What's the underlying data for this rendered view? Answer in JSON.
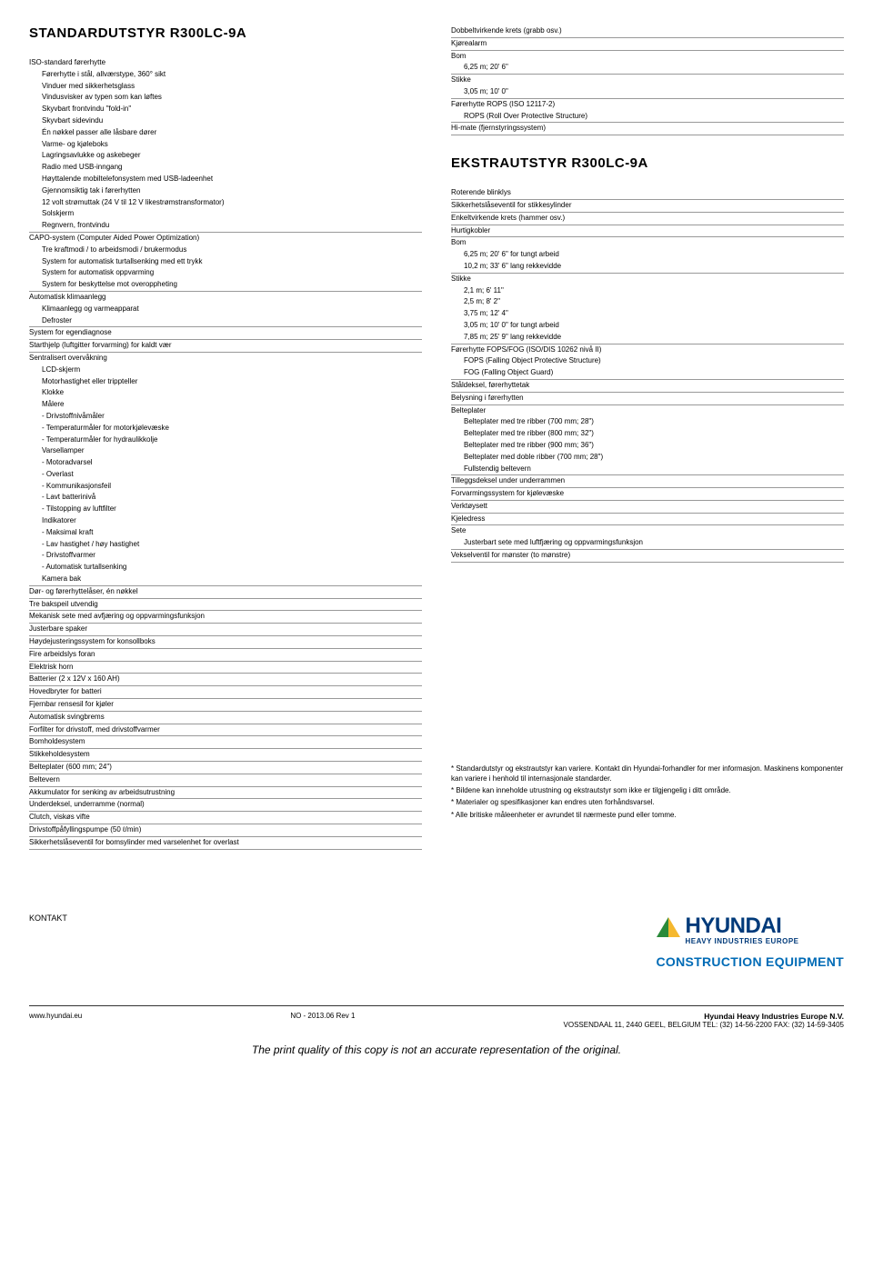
{
  "left": {
    "title": "STANDARDUTSTYR R300LC-9A",
    "groups": [
      {
        "head": "ISO-standard førerhytte",
        "subs": [
          "Førerhytte i stål, allværstype, 360° sikt",
          "Vinduer med sikkerhetsglass",
          "Vindusvisker av typen som kan løftes",
          "Skyvbart frontvindu \"fold-in\"",
          "Skyvbart sidevindu",
          "Én nøkkel passer alle låsbare dører",
          "Varme- og kjøleboks",
          "Lagringsavlukke og askebeger",
          "Radio med USB-inngang",
          "Høyttalende mobiltelefonsystem med USB-ladeenhet",
          "Gjennomsiktig tak i førerhytten",
          "12 volt strømuttak (24 V til 12 V likestrømstransformator)",
          "Solskjerm",
          "Regnvern, frontvindu"
        ]
      },
      {
        "head": "CAPO-system (Computer Aided Power Optimization)",
        "subs": [
          "Tre kraftmodi / to arbeidsmodi / brukermodus",
          "System for automatisk turtallsenking med ett trykk",
          "System for automatisk oppvarming",
          "System for beskyttelse mot overoppheting"
        ]
      },
      {
        "head": "Automatisk klimaanlegg",
        "subs": [
          "Klimaanlegg og varmeapparat",
          "Defroster"
        ]
      },
      {
        "head": "System for egendiagnose",
        "subs": []
      },
      {
        "head": "Starthjelp (luftgitter forvarming) for kaldt vær",
        "subs": []
      },
      {
        "head": "Sentralisert overvåkning",
        "subs": [
          "LCD-skjerm",
          "Motorhastighet eller trippteller",
          "Klokke",
          "Målere",
          "- Drivstoffnivåmåler",
          "- Temperaturmåler for motorkjølevæske",
          "- Temperaturmåler for hydraulikkolje",
          "Varsellamper",
          "- Motoradvarsel",
          "- Overlast",
          "- Kommunikasjonsfeil",
          "- Lavt batterinivå",
          "- Tilstopping av luftfilter",
          "Indikatorer",
          "- Maksimal kraft",
          "- Lav hastighet / høy hastighet",
          "- Drivstoffvarmer",
          "- Automatisk turtallsenking",
          "Kamera bak"
        ]
      },
      {
        "head": "Dør- og førerhyttelåser, én nøkkel",
        "subs": []
      },
      {
        "head": "Tre bakspeil utvendig",
        "subs": []
      },
      {
        "head": "Mekanisk sete med avfjæring og oppvarmingsfunksjon",
        "subs": []
      },
      {
        "head": "Justerbare spaker",
        "subs": []
      },
      {
        "head": "Høydejusteringssystem for konsollboks",
        "subs": []
      },
      {
        "head": "Fire arbeidslys foran",
        "subs": []
      },
      {
        "head": "Elektrisk horn",
        "subs": []
      },
      {
        "head": "Batterier (2 x 12V x 160 AH)",
        "subs": []
      },
      {
        "head": "Hovedbryter for batteri",
        "subs": []
      },
      {
        "head": "Fjernbar rensesil for kjøler",
        "subs": []
      },
      {
        "head": "Automatisk svingbrems",
        "subs": []
      },
      {
        "head": "Forfilter for drivstoff, med drivstoffvarmer",
        "subs": []
      },
      {
        "head": "Bomholdesystem",
        "subs": []
      },
      {
        "head": "Stikkeholdesystem",
        "subs": []
      },
      {
        "head": "Belteplater (600 mm; 24\")",
        "subs": []
      },
      {
        "head": "Beltevern",
        "subs": []
      },
      {
        "head": "Akkumulator for senking av arbeidsutrustning",
        "subs": []
      },
      {
        "head": "Underdeksel, underramme (normal)",
        "subs": []
      },
      {
        "head": "Clutch, viskøs vifte",
        "subs": []
      },
      {
        "head": "Drivstoffpåfyllingspumpe (50 ℓ/min)",
        "subs": []
      },
      {
        "head": "Sikkerhetslåseventil for bomsylinder med varselenhet for overlast",
        "subs": []
      }
    ]
  },
  "right_top": {
    "groups": [
      {
        "head": "Dobbeltvirkende krets (grabb osv.)",
        "subs": []
      },
      {
        "head": "Kjørealarm",
        "subs": []
      },
      {
        "head": "Bom",
        "subs": [
          "6,25 m; 20' 6\""
        ]
      },
      {
        "head": "Stikke",
        "subs": [
          "3,05 m; 10' 0\""
        ]
      },
      {
        "head": "Førerhytte ROPS (ISO 12117-2)",
        "subs": [
          "ROPS (Roll Over Protective Structure)"
        ]
      },
      {
        "head": "Hi-mate (fjernstyringssystem)",
        "subs": []
      }
    ]
  },
  "right": {
    "title": "EKSTRAUTSTYR R300LC-9A",
    "groups": [
      {
        "head": "Roterende blinklys",
        "subs": []
      },
      {
        "head": "Sikkerhetslåseventil for stikkesylinder",
        "subs": []
      },
      {
        "head": "Enkeltvirkende krets (hammer osv.)",
        "subs": []
      },
      {
        "head": "Hurtigkobler",
        "subs": []
      },
      {
        "head": "Bom",
        "subs": [
          "6,25 m; 20' 6\" for tungt arbeid",
          "10,2 m; 33' 6\" lang rekkevidde"
        ]
      },
      {
        "head": "Stikke",
        "subs": [
          "2,1 m; 6' 11\"",
          "2,5 m; 8' 2\"",
          "3,75 m; 12' 4\"",
          "3,05 m; 10' 0\" for tungt arbeid",
          "7,85 m; 25' 9\" lang rekkevidde"
        ]
      },
      {
        "head": "Førerhytte FOPS/FOG (ISO/DIS 10262 nivå II)",
        "subs": [
          "FOPS (Falling Object Protective Structure)",
          "FOG (Falling Object Guard)"
        ]
      },
      {
        "head": "Ståldeksel, førerhyttetak",
        "subs": []
      },
      {
        "head": "Belysning i førerhytten",
        "subs": []
      },
      {
        "head": "Belteplater",
        "subs": [
          "Belteplater med tre ribber (700 mm; 28\")",
          "Belteplater med tre ribber (800 mm; 32\")",
          "Belteplater med tre ribber (900 mm; 36\")",
          "Belteplater med doble ribber (700 mm; 28\")",
          "Fullstendig beltevern"
        ]
      },
      {
        "head": "Tilleggsdeksel under underrammen",
        "subs": []
      },
      {
        "head": "Forvarmingssystem for kjølevæske",
        "subs": []
      },
      {
        "head": "Verktøysett",
        "subs": []
      },
      {
        "head": "Kjeledress",
        "subs": []
      },
      {
        "head": "Sete",
        "subs": [
          "Justerbart sete med luftfjæring og oppvarmingsfunksjon"
        ]
      },
      {
        "head": "Vekselventil for mønster (to mønstre)",
        "subs": []
      }
    ]
  },
  "notes": [
    "*   Standardutstyr og ekstrautstyr kan variere. Kontakt din Hyundai-forhandler for mer informasjon. Maskinens komponenter kan variere i henhold til internasjonale standarder.",
    "*   Bildene kan inneholde utrustning og ekstrautstyr som ikke er tilgjengelig i ditt område.",
    "*   Materialer og spesifikasjoner kan endres uten forhåndsvarsel.",
    "*   Alle britiske måleenheter er avrundet til nærmeste pund eller tomme."
  ],
  "footer": {
    "kontakt": "KONTAKT",
    "brand": "HYUNDAI",
    "brand_sub": "HEAVY INDUSTRIES EUROPE",
    "ce": "CONSTRUCTION EQUIPMENT",
    "url": "www.hyundai.eu",
    "rev": "NO - 2013.06 Rev 1",
    "company": "Hyundai Heavy Industries Europe N.V.",
    "address": "VOSSENDAAL 11, 2440 GEEL, BELGIUM  TEL: (32) 14-56-2200  FAX: (32) 14-59-3405"
  },
  "disclaimer": "The print quality of this copy is not an accurate representation of the original.",
  "colors": {
    "hyundai_blue": "#003a7a",
    "ce_blue": "#006bb6",
    "tri_yellow": "#f5b82e",
    "tri_green": "#2a8a3a"
  }
}
